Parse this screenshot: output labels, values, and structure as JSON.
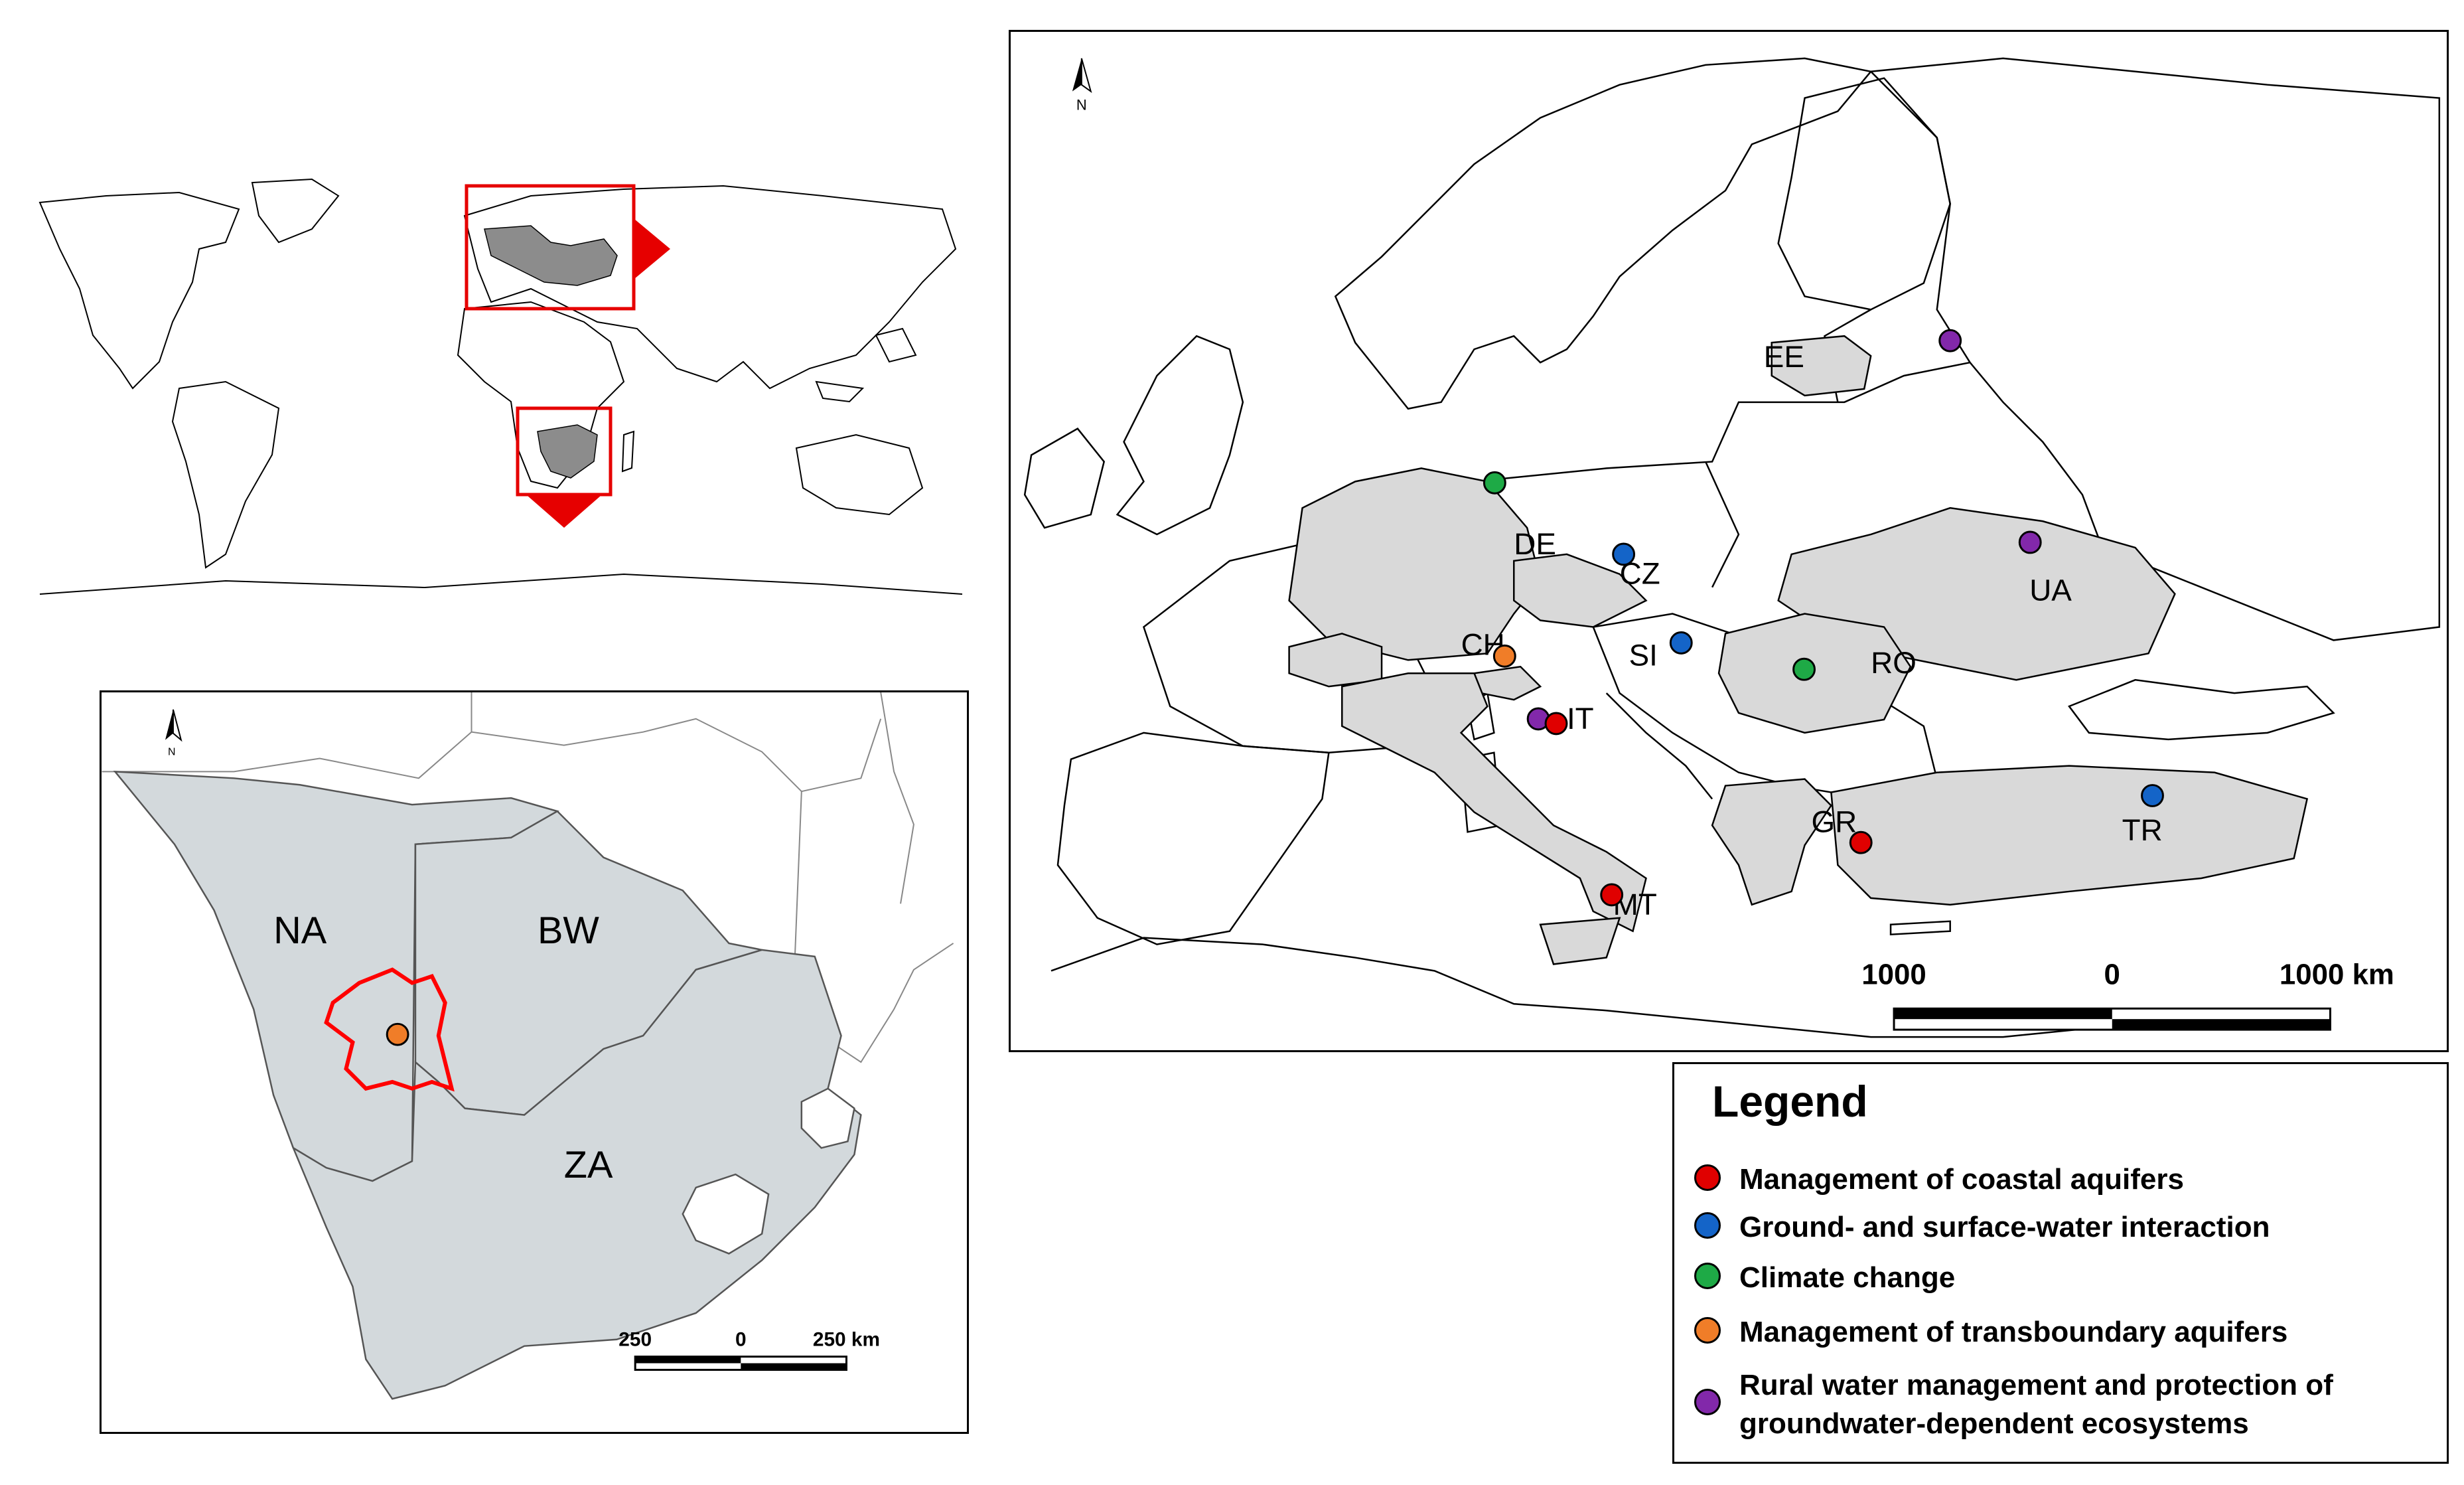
{
  "world_map": {
    "highlight_regions": [
      "Europe",
      "Southern Africa"
    ],
    "colors": {
      "highlight_box": "#e60000",
      "highlight_fill": "#8c8c8c",
      "land_outline": "#000000"
    }
  },
  "africa_inset": {
    "north_arrow_label": "N",
    "countries": [
      {
        "code": "NA"
      },
      {
        "code": "BW"
      },
      {
        "code": "ZA"
      }
    ],
    "study_area_color": "#ff0000",
    "point": {
      "category": "transboundary"
    },
    "scale_bar": {
      "left": "250",
      "middle": "0",
      "right": "250 km"
    },
    "colors": {
      "country_fill": "#d3d9dc"
    }
  },
  "europe_map": {
    "north_arrow_label": "N",
    "countries": [
      "EE",
      "DE",
      "CZ",
      "UA",
      "CH",
      "SI",
      "RO",
      "IT",
      "GR",
      "TR",
      "MT"
    ],
    "points": [
      {
        "category": "rural",
        "country": "EE"
      },
      {
        "category": "climate",
        "country": "DE"
      },
      {
        "category": "ground_surface",
        "country": "CZ"
      },
      {
        "category": "rural",
        "country": "UA"
      },
      {
        "category": "ground_surface",
        "country": "SI"
      },
      {
        "category": "transboundary",
        "country": "CH"
      },
      {
        "category": "climate",
        "country": "RO"
      },
      {
        "category": "rural",
        "country": "IT"
      },
      {
        "category": "coastal",
        "country": "IT"
      },
      {
        "category": "coastal",
        "country": "GR"
      },
      {
        "category": "ground_surface",
        "country": "TR"
      },
      {
        "category": "coastal",
        "country": "MT"
      }
    ],
    "scale_bar": {
      "left": "1000",
      "middle": "0",
      "right": "1000 km"
    },
    "colors": {
      "country_fill": "#d9d9d9"
    }
  },
  "legend": {
    "title": "Legend",
    "items": [
      {
        "key": "coastal",
        "label": "Management of coastal aquifers",
        "color": "#e00000"
      },
      {
        "key": "ground_surface",
        "label": "Ground- and surface-water interaction",
        "color": "#1464c8"
      },
      {
        "key": "climate",
        "label": "Climate change",
        "color": "#1eaa46"
      },
      {
        "key": "transboundary",
        "label": "Management of transboundary aquifers",
        "color": "#f07d28"
      },
      {
        "key": "rural",
        "label": "Rural water management and protection of groundwater-dependent ecosystems",
        "color": "#8228aa"
      }
    ]
  }
}
